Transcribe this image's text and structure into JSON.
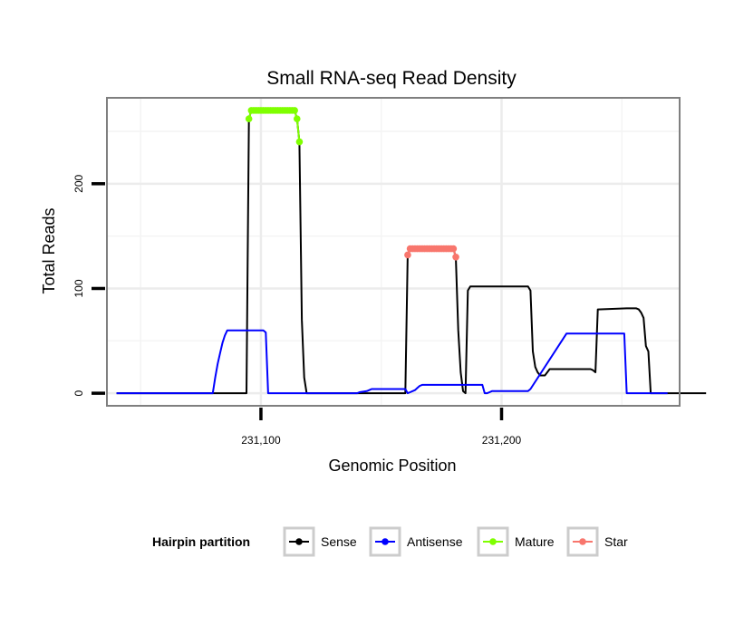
{
  "chart_data": {
    "type": "line",
    "title": "Small RNA-seq Read Density",
    "xlabel": "Genomic Position",
    "ylabel": "Total Reads",
    "xlim": [
      231036,
      231274
    ],
    "ylim": [
      -12,
      282
    ],
    "x_ticks": [
      {
        "value": 231100,
        "label": "231,100"
      },
      {
        "value": 231200,
        "label": "231,200"
      }
    ],
    "y_ticks": [
      {
        "value": 0,
        "label": "0"
      },
      {
        "value": 100,
        "label": "100"
      },
      {
        "value": 200,
        "label": "200"
      }
    ],
    "x_minor": [
      231050,
      231150,
      231250
    ],
    "y_minor": [
      50,
      150,
      250
    ],
    "grid": true,
    "legend": {
      "title": "Hairpin partition",
      "position": "bottom",
      "entries": [
        "Sense",
        "Antisense",
        "Mature",
        "Star"
      ]
    },
    "series": [
      {
        "name": "Sense",
        "color": "#000000",
        "kind": "line",
        "x": [
          231040,
          231094,
          231095,
          231096,
          231097,
          231110,
          231114,
          231115,
          231116,
          231117,
          231118,
          231119,
          231125,
          231160,
          231161,
          231162,
          231180,
          231181,
          231182,
          231183,
          231184,
          231185,
          231186,
          231187,
          231188,
          231189,
          231190,
          231200,
          231211,
          231212,
          231213,
          231214,
          231215,
          231216,
          231218,
          231220,
          231237,
          231238,
          231239,
          231240,
          231252,
          231253,
          231254,
          231255,
          231256,
          231257,
          231258,
          231259,
          231260,
          231261,
          231262,
          231285
        ],
        "y": [
          0,
          0,
          262,
          270,
          270,
          270,
          270,
          262,
          240,
          70,
          15,
          0,
          0,
          0,
          132,
          138,
          138,
          130,
          60,
          20,
          2,
          0,
          98,
          102,
          102,
          102,
          102,
          102,
          102,
          98,
          40,
          25,
          20,
          17,
          17,
          23,
          23,
          22,
          20,
          80,
          81,
          81,
          81,
          81,
          81,
          80,
          77,
          72,
          45,
          40,
          0,
          0
        ]
      },
      {
        "name": "Antisense",
        "color": "#0000ff",
        "kind": "line",
        "x": [
          231040,
          231080,
          231081,
          231082,
          231083,
          231084,
          231085,
          231086,
          231101,
          231102,
          231103,
          231104,
          231135,
          231140,
          231141,
          231144,
          231145,
          231146,
          231160,
          231161,
          231162,
          231164,
          231165,
          231166,
          231167,
          231168,
          231169,
          231170,
          231180,
          231181,
          231190,
          231191,
          231192,
          231193,
          231194,
          231195,
          231196,
          231197,
          231198,
          231200,
          231209,
          231210,
          231211,
          231212,
          231227,
          231228,
          231229,
          231230,
          231250,
          231251,
          231252,
          231269
        ],
        "y": [
          0,
          0,
          15,
          28,
          38,
          48,
          55,
          60,
          60,
          58,
          0,
          0,
          0,
          0,
          1,
          2,
          3,
          4,
          4,
          0,
          1,
          3,
          5,
          7,
          8,
          8,
          8,
          8,
          8,
          8,
          8,
          8,
          8,
          0,
          0,
          1,
          2,
          2,
          2,
          2,
          2,
          2,
          2,
          4,
          57,
          57,
          57,
          57,
          57,
          57,
          0,
          0
        ]
      },
      {
        "name": "Mature",
        "color": "#7fff00",
        "kind": "points",
        "x": [
          231095,
          231096,
          231097,
          231098,
          231099,
          231100,
          231101,
          231102,
          231103,
          231104,
          231105,
          231106,
          231107,
          231108,
          231109,
          231110,
          231111,
          231112,
          231113,
          231114,
          231115,
          231116
        ],
        "y": [
          262,
          270,
          270,
          270,
          270,
          270,
          270,
          270,
          270,
          270,
          270,
          270,
          270,
          270,
          270,
          270,
          270,
          270,
          270,
          270,
          262,
          240
        ]
      },
      {
        "name": "Star",
        "color": "#f8766d",
        "kind": "points",
        "x": [
          231161,
          231162,
          231163,
          231164,
          231165,
          231166,
          231167,
          231168,
          231169,
          231170,
          231171,
          231172,
          231173,
          231174,
          231175,
          231176,
          231177,
          231178,
          231179,
          231180,
          231181
        ],
        "y": [
          132,
          138,
          138,
          138,
          138,
          138,
          138,
          138,
          138,
          138,
          138,
          138,
          138,
          138,
          138,
          138,
          138,
          138,
          138,
          138,
          130
        ]
      }
    ]
  }
}
